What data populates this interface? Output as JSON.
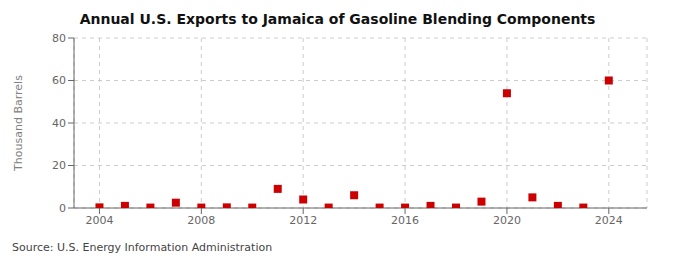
{
  "chart_data": {
    "type": "scatter",
    "title": "Annual U.S. Exports to Jamaica of Gasoline Blending Components",
    "y_label": "Thousand Barrels",
    "annotations": [
      "Source: U.S. Energy Information Administration"
    ],
    "x": [
      2004,
      2005,
      2006,
      2007,
      2008,
      2009,
      2010,
      2011,
      2012,
      2013,
      2014,
      2015,
      2016,
      2017,
      2018,
      2019,
      2020,
      2021,
      2022,
      2023,
      2024
    ],
    "values": [
      0.3,
      1.0,
      0.2,
      2.5,
      0.2,
      0.3,
      0.2,
      9.0,
      4.0,
      0.2,
      6.0,
      0.2,
      0.2,
      1.0,
      0.2,
      3.0,
      54.0,
      5.0,
      1.0,
      0.2,
      60.0
    ],
    "color": "#cc0000",
    "marker": "square",
    "xlim": [
      2003.0,
      2025.5
    ],
    "xticks": [
      2004,
      2008,
      2012,
      2016,
      2020,
      2024
    ],
    "ylim": [
      0,
      80
    ],
    "yticks": [
      0,
      20,
      40,
      60,
      80
    ],
    "grid": true
  }
}
